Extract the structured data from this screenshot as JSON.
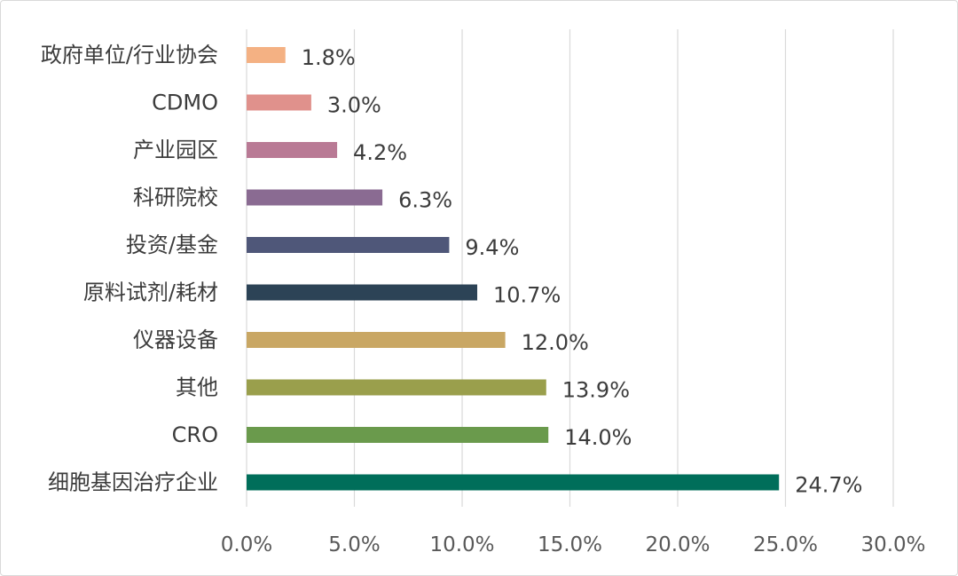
{
  "chart_data": {
    "type": "bar",
    "orientation": "horizontal",
    "categories": [
      "政府单位/行业协会",
      "CDMO",
      "产业园区",
      "科研院校",
      "投资/基金",
      "原料试剂/耗材",
      "仪器设备",
      "其他",
      "CRO",
      "细胞基因治疗企业"
    ],
    "values": [
      1.8,
      3.0,
      4.2,
      6.3,
      9.4,
      10.7,
      12.0,
      13.9,
      14.0,
      24.7
    ],
    "value_labels": [
      "1.8%",
      "3.0%",
      "4.2%",
      "6.3%",
      "9.4%",
      "10.7%",
      "12.0%",
      "13.9%",
      "14.0%",
      "24.7%"
    ],
    "colors": [
      "#f4b183",
      "#e0918c",
      "#b97a95",
      "#8a6b92",
      "#4f5779",
      "#2c4356",
      "#c9a764",
      "#9a9f4c",
      "#6a9a4c",
      "#006e5a"
    ],
    "xlim": [
      0,
      30
    ],
    "x_ticks": [
      0,
      5,
      10,
      15,
      20,
      25,
      30
    ],
    "x_tick_labels": [
      "0.0%",
      "5.0%",
      "10.0%",
      "15.0%",
      "20.0%",
      "25.0%",
      "30.0%"
    ],
    "grid": true,
    "title": "",
    "xlabel": "",
    "ylabel": ""
  }
}
